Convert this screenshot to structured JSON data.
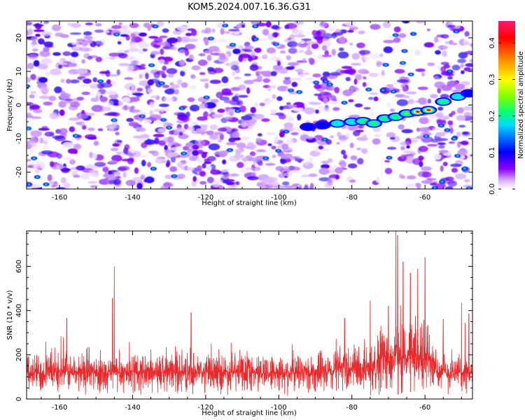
{
  "title": "KOM5.2024.007.16.36.G31",
  "chart_data": [
    {
      "type": "heatmap",
      "xlabel": "Height of straight line (km)",
      "ylabel": "Frequency (Hz)",
      "xlim": [
        -169,
        -47
      ],
      "ylim": [
        -25,
        25
      ],
      "x_ticks": [
        -160,
        -140,
        -120,
        -100,
        -80,
        -60
      ],
      "y_ticks": [
        -20,
        -10,
        0,
        10,
        20
      ],
      "colorbar": {
        "label": "Normalized spectral amplitude",
        "range": [
          0.0,
          0.46
        ],
        "ticks": [
          0.0,
          0.1,
          0.2,
          0.3,
          0.4
        ],
        "colormap": [
          "#ffffff",
          "#8a00ff",
          "#0000ff",
          "#00d8ff",
          "#00ff80",
          "#80ff00",
          "#ffff00",
          "#ff8000",
          "#ff0000",
          "#ff0080"
        ]
      },
      "ridge_points": [
        {
          "x": -92,
          "y": -6.5,
          "amp": 0.13
        },
        {
          "x": -88,
          "y": -6.0,
          "amp": 0.15
        },
        {
          "x": -84,
          "y": -5.5,
          "amp": 0.17
        },
        {
          "x": -80,
          "y": -5.0,
          "amp": 0.19
        },
        {
          "x": -77,
          "y": -4.8,
          "amp": 0.24
        },
        {
          "x": -74,
          "y": -5.5,
          "amp": 0.21
        },
        {
          "x": -71,
          "y": -4.0,
          "amp": 0.23
        },
        {
          "x": -68,
          "y": -3.5,
          "amp": 0.22
        },
        {
          "x": -65,
          "y": -2.5,
          "amp": 0.27
        },
        {
          "x": -62,
          "y": -2.0,
          "amp": 0.45
        },
        {
          "x": -59,
          "y": -1.5,
          "amp": 0.42
        },
        {
          "x": -55,
          "y": 1.0,
          "amp": 0.22
        },
        {
          "x": -51,
          "y": 2.5,
          "amp": 0.18
        },
        {
          "x": -48,
          "y": 3.5,
          "amp": 0.15
        }
      ]
    },
    {
      "type": "line",
      "xlabel": "Height of straight line (km)",
      "ylabel": "SNR (10 * v/v)",
      "xlim": [
        -169,
        -47
      ],
      "ylim": [
        0,
        760
      ],
      "x_ticks": [
        -160,
        -140,
        -120,
        -100,
        -80,
        -60
      ],
      "y_ticks": [
        0,
        200,
        400,
        600
      ],
      "series": [
        {
          "color": "#e8282a",
          "base_level": 120,
          "spikes": [
            {
              "x": -158,
              "y": 365
            },
            {
              "x": -145,
              "y": 600
            },
            {
              "x": -145.5,
              "y": 455
            },
            {
              "x": -124,
              "y": 390
            },
            {
              "x": -82,
              "y": 365
            },
            {
              "x": -75,
              "y": 445
            },
            {
              "x": -70,
              "y": 420
            },
            {
              "x": -68,
              "y": 760
            },
            {
              "x": -67.5,
              "y": 740
            },
            {
              "x": -66,
              "y": 620
            },
            {
              "x": -64,
              "y": 570
            },
            {
              "x": -62,
              "y": 590
            },
            {
              "x": -60,
              "y": 640
            },
            {
              "x": -55,
              "y": 360
            },
            {
              "x": -50,
              "y": 435
            },
            {
              "x": -48,
              "y": 385
            }
          ]
        }
      ]
    }
  ]
}
